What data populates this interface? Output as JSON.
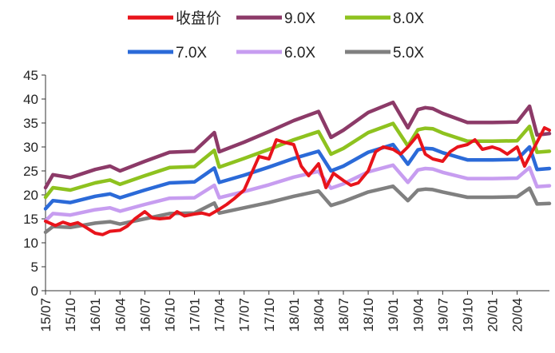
{
  "chart_data": {
    "type": "line",
    "title": "",
    "xlabel": "",
    "ylabel": "",
    "ylim": [
      0,
      45
    ],
    "y_ticks": [
      0,
      5,
      10,
      15,
      20,
      25,
      30,
      35,
      40,
      45
    ],
    "x_tick_labels": [
      "15/07",
      "15/10",
      "16/01",
      "16/04",
      "16/07",
      "16/10",
      "17/01",
      "17/04",
      "17/07",
      "17/10",
      "18/01",
      "18/04",
      "18/07",
      "18/10",
      "19/01",
      "19/04",
      "19/07",
      "19/10",
      "20/01",
      "20/04"
    ],
    "grid": false,
    "legend_position": "top",
    "legend": [
      "收盘价",
      "9.0X",
      "8.0X",
      "7.0X",
      "6.0X",
      "5.0X"
    ],
    "series": [
      {
        "name": "收盘价",
        "color": "#e8141b",
        "x": [
          0,
          0.4,
          0.7,
          1,
          1.3,
          1.6,
          2,
          2.3,
          2.6,
          3,
          3.3,
          3.6,
          4,
          4.3,
          4.6,
          5,
          5.3,
          5.6,
          6,
          6.3,
          6.6,
          7,
          7.3,
          7.6,
          8,
          8.3,
          8.6,
          9,
          9.3,
          9.6,
          10,
          10.3,
          10.6,
          11,
          11.3,
          11.6,
          12,
          12.3,
          12.6,
          13,
          13.3,
          13.6,
          14,
          14.3,
          14.6,
          15,
          15.3,
          15.6,
          16,
          16.3,
          16.6,
          17,
          17.3,
          17.6,
          18,
          18.3,
          18.6,
          19,
          19.3,
          19.6,
          19.8,
          20.1,
          20.3
        ],
        "values": [
          14.5,
          13.6,
          14.3,
          13.8,
          14.2,
          13.3,
          12,
          11.7,
          12.4,
          12.6,
          13.5,
          15,
          16.5,
          15.2,
          15,
          15.2,
          16.5,
          15.6,
          16,
          16.2,
          15.8,
          17,
          18,
          19.2,
          21,
          24.5,
          28,
          27.5,
          31.5,
          31,
          30.5,
          26,
          24,
          26.5,
          21.5,
          24.5,
          23,
          22,
          22.5,
          25,
          29,
          30,
          29.5,
          28.5,
          30,
          32.5,
          28.5,
          27.5,
          27,
          29,
          30,
          30.5,
          31.5,
          29.5,
          30,
          29.5,
          28.5,
          30,
          26,
          29,
          31,
          34,
          33.5
        ]
      },
      {
        "name": "9.0X",
        "color": "#8c3a68",
        "x": [
          0,
          0.3,
          1,
          2,
          2.6,
          3,
          4,
          5,
          6,
          6.8,
          7,
          8,
          9,
          10,
          11,
          11.5,
          12,
          13,
          14,
          14.6,
          15,
          15.3,
          15.6,
          16,
          17,
          18,
          19,
          19.5,
          19.8,
          20.3
        ],
        "values": [
          21.5,
          24.2,
          23.6,
          25.3,
          26,
          25,
          27,
          28.9,
          29.1,
          33,
          29,
          31,
          33.2,
          35.5,
          37.4,
          32,
          33.5,
          37.2,
          39.3,
          34,
          37.8,
          38.2,
          38,
          37,
          35.1,
          35.1,
          35.2,
          38.5,
          32.5,
          32.8
        ]
      },
      {
        "name": "8.0X",
        "color": "#8ec21f",
        "x": [
          0,
          0.3,
          1,
          2,
          2.6,
          3,
          4,
          5,
          6,
          6.8,
          7,
          8,
          9,
          10,
          11,
          11.5,
          12,
          13,
          14,
          14.6,
          15,
          15.3,
          15.6,
          16,
          17,
          18,
          19,
          19.5,
          19.8,
          20.3
        ],
        "values": [
          19.5,
          21.5,
          21,
          22.5,
          23.1,
          22.2,
          24,
          25.7,
          25.9,
          29.3,
          25.8,
          27.6,
          29.5,
          31.5,
          33.2,
          28.5,
          29.7,
          33,
          34.9,
          30.2,
          33.6,
          33.9,
          33.8,
          32.9,
          31.2,
          31.2,
          31.3,
          34.3,
          28.9,
          29.1
        ]
      },
      {
        "name": "7.0X",
        "color": "#2b6ad8",
        "x": [
          0,
          0.3,
          1,
          2,
          2.6,
          3,
          4,
          5,
          6,
          6.8,
          7,
          8,
          9,
          10,
          11,
          11.5,
          12,
          13,
          14,
          14.6,
          15,
          15.3,
          15.6,
          16,
          17,
          18,
          19,
          19.5,
          19.8,
          20.3
        ],
        "values": [
          17.1,
          18.8,
          18.4,
          19.7,
          20.2,
          19.4,
          21,
          22.5,
          22.7,
          25.6,
          22.6,
          24.1,
          25.8,
          27.6,
          29.1,
          25,
          26,
          28.9,
          30.5,
          26.4,
          29.4,
          29.7,
          29.6,
          28.8,
          27.3,
          27.3,
          27.4,
          30,
          25.3,
          25.5
        ]
      },
      {
        "name": "6.0X",
        "color": "#c79df0",
        "x": [
          0,
          0.3,
          1,
          2,
          2.6,
          3,
          4,
          5,
          6,
          6.8,
          7,
          8,
          9,
          10,
          11,
          11.5,
          12,
          13,
          14,
          14.6,
          15,
          15.3,
          15.6,
          16,
          17,
          18,
          19,
          19.5,
          19.8,
          20.3
        ],
        "values": [
          14.6,
          16.1,
          15.8,
          16.9,
          17.3,
          16.6,
          18,
          19.3,
          19.4,
          22,
          19.4,
          20.7,
          22.1,
          23.7,
          24.9,
          21.4,
          22.3,
          24.8,
          26.2,
          22.6,
          25.2,
          25.5,
          25.4,
          24.7,
          23.4,
          23.4,
          23.5,
          25.7,
          21.7,
          21.9
        ]
      },
      {
        "name": "5.0X",
        "color": "#808080",
        "x": [
          0,
          0.3,
          1,
          2,
          2.6,
          3,
          4,
          5,
          6,
          6.8,
          7,
          8,
          9,
          10,
          11,
          11.5,
          12,
          13,
          14,
          14.6,
          15,
          15.3,
          15.6,
          16,
          17,
          18,
          19,
          19.5,
          19.8,
          20.3
        ],
        "values": [
          12.2,
          13.4,
          13.2,
          14.1,
          14.4,
          13.9,
          15,
          16.1,
          16.2,
          18.3,
          16.2,
          17.3,
          18.4,
          19.7,
          20.8,
          17.8,
          18.6,
          20.6,
          21.8,
          18.8,
          21,
          21.2,
          21.1,
          20.6,
          19.5,
          19.5,
          19.6,
          21.4,
          18.1,
          18.2
        ]
      }
    ]
  }
}
